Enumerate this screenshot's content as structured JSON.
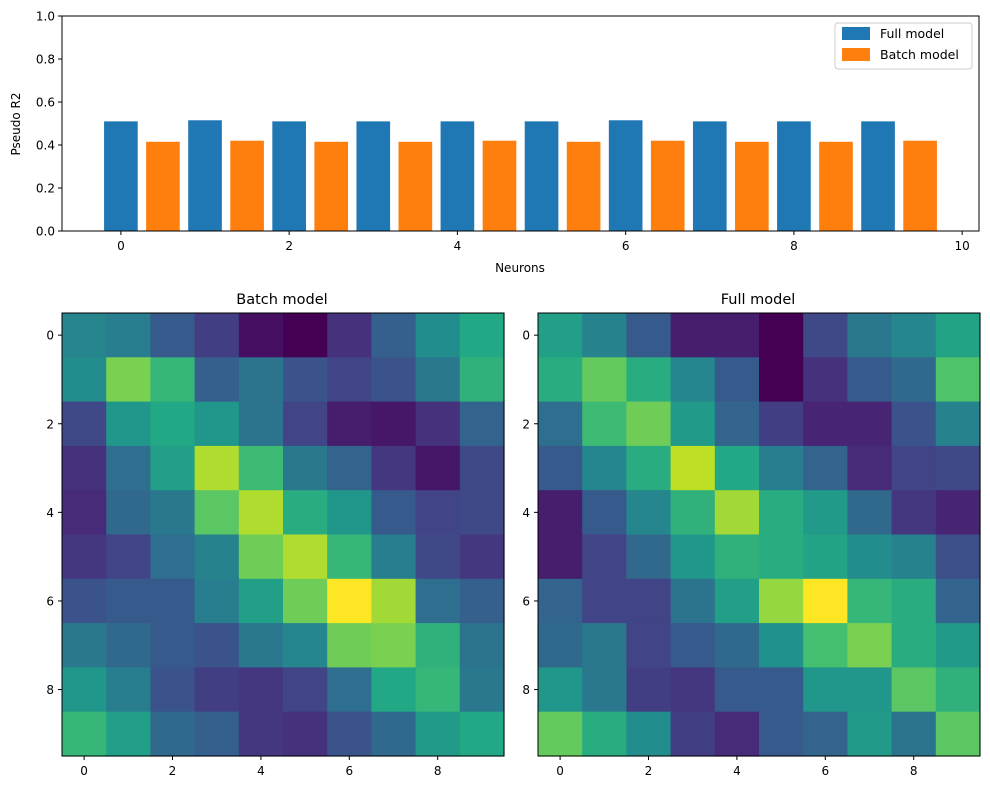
{
  "chart_data": [
    {
      "type": "bar",
      "xlabel": "Neurons",
      "ylabel": "Pseudo R2",
      "xlim": [
        -0.7,
        10.2
      ],
      "ylim": [
        0,
        1
      ],
      "xticks": [
        "0",
        "2",
        "4",
        "6",
        "8",
        "10"
      ],
      "yticks": [
        "0.0",
        "0.2",
        "0.4",
        "0.6",
        "0.8",
        "1.0"
      ],
      "legend_position": "top-right",
      "x": [
        0,
        1,
        2,
        3,
        4,
        5,
        6,
        7,
        8,
        9
      ],
      "series": [
        {
          "name": "Full model",
          "color": "#1f77b4",
          "offset": 0.0,
          "values": [
            0.51,
            0.515,
            0.51,
            0.51,
            0.51,
            0.51,
            0.515,
            0.51,
            0.51,
            0.51
          ]
        },
        {
          "name": "Batch model",
          "color": "#ff7f0e",
          "offset": 0.5,
          "values": [
            0.415,
            0.42,
            0.415,
            0.415,
            0.42,
            0.415,
            0.42,
            0.415,
            0.415,
            0.42
          ]
        }
      ]
    },
    {
      "type": "heatmap",
      "title": "Batch model",
      "colormap": "viridis",
      "value_range": [
        0,
        1
      ],
      "xticks": [
        "0",
        "2",
        "4",
        "6",
        "8"
      ],
      "yticks": [
        "0",
        "2",
        "4",
        "6",
        "8"
      ],
      "values": [
        [
          0.45,
          0.42,
          0.28,
          0.18,
          0.04,
          0.0,
          0.14,
          0.3,
          0.48,
          0.6
        ],
        [
          0.48,
          0.8,
          0.66,
          0.3,
          0.38,
          0.26,
          0.2,
          0.26,
          0.4,
          0.64
        ],
        [
          0.22,
          0.52,
          0.6,
          0.52,
          0.38,
          0.2,
          0.08,
          0.06,
          0.14,
          0.32
        ],
        [
          0.14,
          0.36,
          0.56,
          0.88,
          0.68,
          0.4,
          0.32,
          0.16,
          0.06,
          0.22
        ],
        [
          0.12,
          0.34,
          0.4,
          0.74,
          0.88,
          0.62,
          0.52,
          0.28,
          0.2,
          0.22
        ],
        [
          0.16,
          0.2,
          0.36,
          0.44,
          0.78,
          0.88,
          0.66,
          0.42,
          0.22,
          0.16
        ],
        [
          0.26,
          0.28,
          0.28,
          0.42,
          0.56,
          0.78,
          1.0,
          0.86,
          0.36,
          0.3
        ],
        [
          0.4,
          0.34,
          0.28,
          0.26,
          0.4,
          0.46,
          0.78,
          0.8,
          0.64,
          0.38
        ],
        [
          0.52,
          0.42,
          0.26,
          0.18,
          0.16,
          0.2,
          0.36,
          0.6,
          0.66,
          0.4
        ],
        [
          0.66,
          0.56,
          0.34,
          0.3,
          0.16,
          0.14,
          0.26,
          0.34,
          0.54,
          0.6
        ]
      ]
    },
    {
      "type": "heatmap",
      "title": "Full model",
      "colormap": "viridis",
      "value_range": [
        0,
        1
      ],
      "xticks": [
        "0",
        "2",
        "4",
        "6",
        "8"
      ],
      "yticks": [
        "0",
        "2",
        "4",
        "6",
        "8"
      ],
      "values": [
        [
          0.56,
          0.44,
          0.28,
          0.08,
          0.08,
          0.0,
          0.22,
          0.4,
          0.46,
          0.58
        ],
        [
          0.62,
          0.76,
          0.62,
          0.46,
          0.28,
          0.0,
          0.14,
          0.28,
          0.34,
          0.72
        ],
        [
          0.36,
          0.68,
          0.78,
          0.54,
          0.32,
          0.18,
          0.1,
          0.1,
          0.26,
          0.44
        ],
        [
          0.28,
          0.46,
          0.62,
          0.9,
          0.6,
          0.42,
          0.32,
          0.12,
          0.2,
          0.22
        ],
        [
          0.08,
          0.28,
          0.46,
          0.64,
          0.86,
          0.62,
          0.54,
          0.34,
          0.16,
          0.1
        ],
        [
          0.08,
          0.2,
          0.34,
          0.52,
          0.64,
          0.62,
          0.58,
          0.48,
          0.44,
          0.24
        ],
        [
          0.32,
          0.2,
          0.2,
          0.38,
          0.56,
          0.84,
          1.0,
          0.66,
          0.62,
          0.32
        ],
        [
          0.34,
          0.4,
          0.2,
          0.28,
          0.34,
          0.5,
          0.7,
          0.8,
          0.62,
          0.54
        ],
        [
          0.52,
          0.4,
          0.18,
          0.16,
          0.28,
          0.28,
          0.52,
          0.52,
          0.74,
          0.64
        ],
        [
          0.76,
          0.62,
          0.48,
          0.18,
          0.12,
          0.28,
          0.32,
          0.54,
          0.38,
          0.74
        ]
      ]
    }
  ]
}
